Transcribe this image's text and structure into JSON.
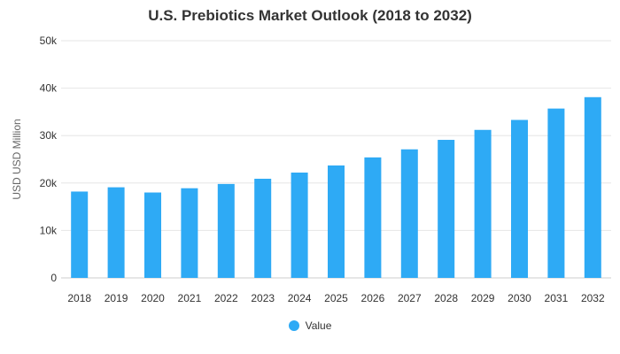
{
  "chart_data": {
    "type": "bar",
    "title": "U.S. Prebiotics Market Outlook (2018 to 2032)",
    "xlabel": "",
    "ylabel": "USD USD Million",
    "categories": [
      "2018",
      "2019",
      "2020",
      "2021",
      "2022",
      "2023",
      "2024",
      "2025",
      "2026",
      "2027",
      "2028",
      "2029",
      "2030",
      "2031",
      "2032"
    ],
    "series": [
      {
        "name": "Value",
        "color": "#2eaaf5",
        "values": [
          18200,
          19100,
          18000,
          18900,
          19800,
          20900,
          22200,
          23700,
          25400,
          27100,
          29100,
          31200,
          33300,
          35700,
          38100
        ]
      }
    ],
    "ylim": [
      0,
      50000
    ],
    "yticks": [
      0,
      10000,
      20000,
      30000,
      40000,
      50000
    ],
    "ytick_labels": [
      "0",
      "10k",
      "20k",
      "30k",
      "40k",
      "50k"
    ],
    "grid": true,
    "legend_position": "bottom"
  }
}
